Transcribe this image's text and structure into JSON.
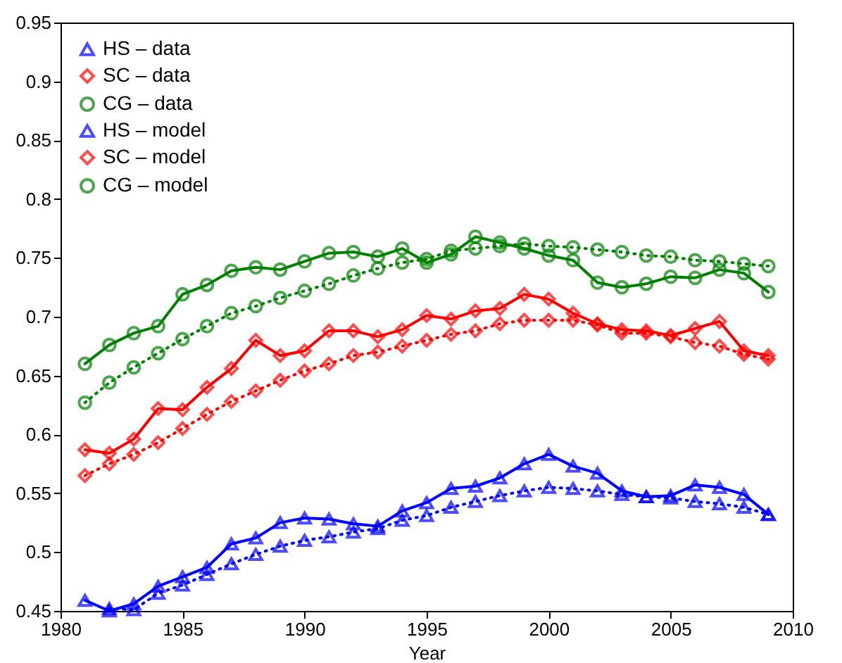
{
  "chart_data": {
    "type": "line",
    "xlabel": "Year",
    "x": [
      1981,
      1982,
      1983,
      1984,
      1985,
      1986,
      1987,
      1988,
      1989,
      1990,
      1991,
      1992,
      1993,
      1994,
      1995,
      1996,
      1997,
      1998,
      1999,
      2000,
      2001,
      2002,
      2003,
      2004,
      2005,
      2006,
      2007,
      2008,
      2009
    ],
    "xlim": [
      1980,
      2010
    ],
    "xticks": [
      1980,
      1985,
      1990,
      1995,
      2000,
      2005,
      2010
    ],
    "ylim": [
      0.45,
      0.95
    ],
    "yticks": [
      0.45,
      0.5,
      0.55,
      0.6,
      0.65,
      0.7,
      0.75,
      0.8,
      0.85,
      0.9,
      0.95
    ],
    "grid": false,
    "legend": "top left",
    "series": [
      {
        "name": "HS – data",
        "color": "#0000ff",
        "marker": "triangle",
        "line_style": "solid",
        "values": [
          0.459,
          0.45,
          0.456,
          0.471,
          0.479,
          0.487,
          0.507,
          0.512,
          0.525,
          0.529,
          0.528,
          0.524,
          0.522,
          0.535,
          0.542,
          0.554,
          0.556,
          0.563,
          0.575,
          0.583,
          0.573,
          0.567,
          0.552,
          0.547,
          0.548,
          0.557,
          0.555,
          0.549,
          0.532
        ]
      },
      {
        "name": "SC – data",
        "color": "#ff0000",
        "marker": "diamond",
        "line_style": "solid",
        "values": [
          0.587,
          0.584,
          0.596,
          0.622,
          0.621,
          0.64,
          0.656,
          0.68,
          0.667,
          0.671,
          0.688,
          0.688,
          0.683,
          0.689,
          0.701,
          0.698,
          0.705,
          0.707,
          0.719,
          0.715,
          0.703,
          0.694,
          0.689,
          0.688,
          0.684,
          0.69,
          0.696,
          0.671,
          0.667
        ]
      },
      {
        "name": "CG – data",
        "color": "#008000",
        "marker": "circle",
        "line_style": "solid",
        "values": [
          0.66,
          0.676,
          0.686,
          0.692,
          0.719,
          0.727,
          0.739,
          0.742,
          0.74,
          0.747,
          0.754,
          0.755,
          0.751,
          0.758,
          0.746,
          0.753,
          0.768,
          0.763,
          0.758,
          0.752,
          0.748,
          0.729,
          0.725,
          0.728,
          0.734,
          0.733,
          0.74,
          0.737,
          0.721
        ]
      },
      {
        "name": "HS – model",
        "color": "#0000ff",
        "marker": "triangle",
        "line_style": "dotted",
        "values": [
          null,
          0.452,
          0.451,
          0.465,
          0.472,
          0.481,
          0.49,
          0.498,
          0.505,
          0.51,
          0.513,
          0.517,
          0.52,
          0.527,
          0.531,
          0.538,
          0.543,
          0.548,
          0.552,
          0.555,
          0.554,
          0.552,
          0.549,
          0.547,
          0.546,
          0.543,
          0.541,
          0.538,
          0.532
        ]
      },
      {
        "name": "SC – model",
        "color": "#ff0000",
        "marker": "diamond",
        "line_style": "dotted",
        "values": [
          0.565,
          0.575,
          0.583,
          0.593,
          0.605,
          0.617,
          0.628,
          0.637,
          0.646,
          0.654,
          0.66,
          0.667,
          0.67,
          0.675,
          0.68,
          0.685,
          0.688,
          0.694,
          0.697,
          0.697,
          0.697,
          0.693,
          0.686,
          0.686,
          0.683,
          0.678,
          0.675,
          0.668,
          0.664
        ]
      },
      {
        "name": "CG – model",
        "color": "#008000",
        "marker": "circle",
        "line_style": "dotted",
        "values": [
          0.627,
          0.644,
          0.657,
          0.669,
          0.681,
          0.692,
          0.703,
          0.709,
          0.716,
          0.722,
          0.728,
          0.735,
          0.741,
          0.746,
          0.749,
          0.756,
          0.758,
          0.76,
          0.762,
          0.76,
          0.759,
          0.757,
          0.755,
          0.752,
          0.751,
          0.748,
          0.747,
          0.745,
          0.743
        ]
      }
    ]
  }
}
